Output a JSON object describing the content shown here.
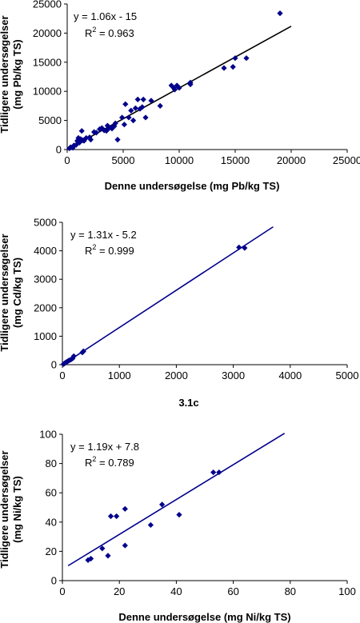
{
  "chart_data": [
    {
      "type": "scatter",
      "xlabel": "Denne undersøgelse (mg Pb/kg TS)",
      "ylabel_lines": [
        "Tidligere undersøgelser",
        "(mg Pb/kg TS)"
      ],
      "xlim": [
        0,
        25000
      ],
      "ylim": [
        0,
        25000
      ],
      "xticks": [
        "0",
        "5000",
        "10000",
        "15000",
        "20000",
        "25000"
      ],
      "yticks": [
        "0",
        "5000",
        "10000",
        "15000",
        "20000",
        "25000"
      ],
      "equation": "y = 1.06x - 15",
      "r2_label": "R",
      "r2_sup": "2",
      "r2_value": " = 0.963",
      "trendline": {
        "slope": 1.06,
        "intercept": -15,
        "x_range": [
          0,
          20000
        ]
      },
      "marker_color": "#00008B",
      "line_color": "#000000",
      "x": [
        200,
        300,
        500,
        600,
        800,
        900,
        1000,
        1100,
        1200,
        1300,
        1400,
        1500,
        1700,
        2000,
        2100,
        2400,
        2600,
        2900,
        3100,
        3300,
        3500,
        3600,
        3700,
        3900,
        4000,
        4200,
        4300,
        4500,
        4900,
        5100,
        5200,
        5500,
        5700,
        5900,
        6100,
        6300,
        6500,
        6700,
        6800,
        7000,
        7500,
        8300,
        9300,
        9500,
        9600,
        9800,
        10000,
        11000,
        11000,
        14000,
        14800,
        15000,
        16000,
        19000
      ],
      "y": [
        200,
        400,
        300,
        700,
        800,
        1500,
        2000,
        1200,
        1800,
        3200,
        1600,
        1500,
        2000,
        2100,
        1700,
        3000,
        2900,
        3500,
        3700,
        3300,
        3200,
        4100,
        3600,
        3800,
        3600,
        4000,
        4500,
        1700,
        5500,
        4300,
        7800,
        5500,
        6700,
        5000,
        7100,
        8600,
        7000,
        7300,
        8600,
        5500,
        8400,
        7500,
        11000,
        10600,
        10300,
        11000,
        10600,
        11200,
        11500,
        14000,
        14200,
        15700,
        15700,
        23400
      ]
    },
    {
      "type": "scatter",
      "xlabel": "",
      "ylabel_lines": [
        "Tidligere undersøgelser",
        "(mg Cd/kg TS)"
      ],
      "xlim": [
        0,
        5000
      ],
      "ylim": [
        0,
        5000
      ],
      "xticks": [
        "0",
        "1000",
        "2000",
        "3000",
        "4000",
        "5000"
      ],
      "yticks": [
        "0",
        "1000",
        "2000",
        "3000",
        "4000",
        "5000"
      ],
      "equation": "y = 1.31x - 5.2",
      "r2_label": "R",
      "r2_sup": "2",
      "r2_value": " = 0.999",
      "trendline": {
        "slope": 1.31,
        "intercept": -5.2,
        "x_range": [
          0,
          3700
        ]
      },
      "marker_color": "#00008B",
      "line_color": "#00008B",
      "x": [
        20,
        40,
        60,
        80,
        100,
        120,
        150,
        180,
        200,
        350,
        370,
        3100,
        3200
      ],
      "y": [
        20,
        50,
        80,
        100,
        130,
        150,
        180,
        220,
        300,
        430,
        470,
        4120,
        4100
      ]
    },
    {
      "type": "scatter",
      "xlabel": "Denne undersøgelse (mg Ni/kg TS)",
      "ylabel_lines": [
        "Tidligere undersøgelser",
        "(mg Ni/kg TS)"
      ],
      "xlim": [
        0,
        100
      ],
      "ylim": [
        0,
        100
      ],
      "xticks": [
        "0",
        "20",
        "40",
        "60",
        "80",
        "100"
      ],
      "yticks": [
        "0",
        "20",
        "40",
        "60",
        "80",
        "100"
      ],
      "equation": "y = 1.19x + 7.8",
      "r2_label": "R",
      "r2_sup": "2",
      "r2_value": " = 0.789",
      "trendline": {
        "slope": 1.19,
        "intercept": 7.8,
        "x_range": [
          2,
          78
        ]
      },
      "marker_color": "#00008B",
      "line_color": "#00008B",
      "x": [
        9,
        10,
        14,
        16,
        17,
        19,
        22,
        22,
        31,
        35,
        41,
        53,
        55
      ],
      "y": [
        14,
        15,
        22,
        17,
        44,
        44,
        49,
        24,
        38,
        52,
        45,
        74,
        74
      ]
    }
  ],
  "figure_label": "3.1c"
}
